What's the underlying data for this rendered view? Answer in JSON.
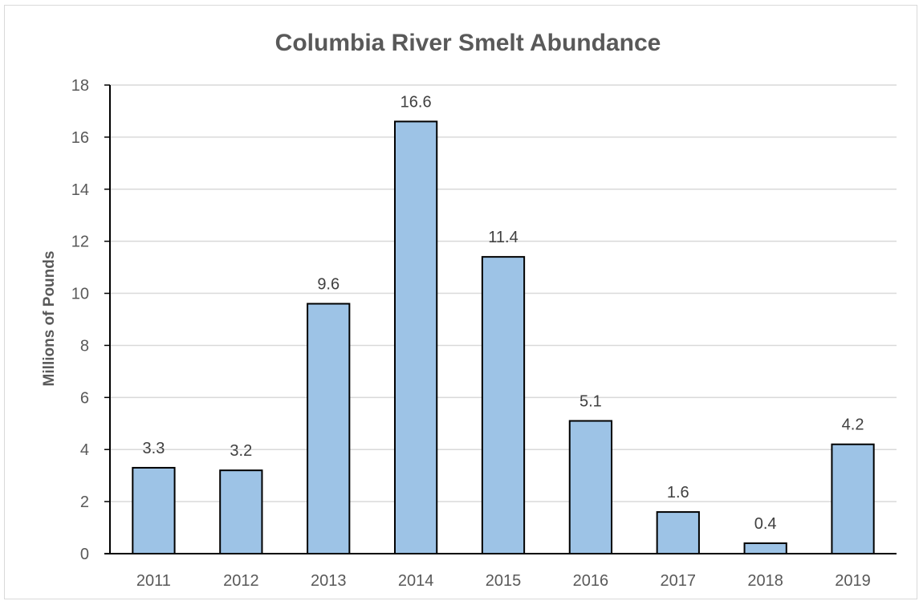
{
  "chart_data": {
    "type": "bar",
    "title": "Columbia River Smelt Abundance",
    "xlabel": "",
    "ylabel": "Millions of Pounds",
    "categories": [
      "2011",
      "2012",
      "2013",
      "2014",
      "2015",
      "2016",
      "2017",
      "2018",
      "2019"
    ],
    "values": [
      3.3,
      3.2,
      9.6,
      16.6,
      11.4,
      5.1,
      1.6,
      0.4,
      4.2
    ],
    "data_labels": [
      "3.3",
      "3.2",
      "9.6",
      "16.6",
      "11.4",
      "5.1",
      "1.6",
      "0.4",
      "4.2"
    ],
    "ylim": [
      0,
      18
    ],
    "yticks": [
      "0",
      "2",
      "4",
      "6",
      "8",
      "10",
      "12",
      "14",
      "16",
      "18"
    ],
    "grid": true,
    "legend": "none",
    "colors": {
      "bar_fill": "#9dc3e6",
      "bar_stroke": "#000000",
      "grid": "#d9d9d9",
      "text": "#595959"
    }
  }
}
